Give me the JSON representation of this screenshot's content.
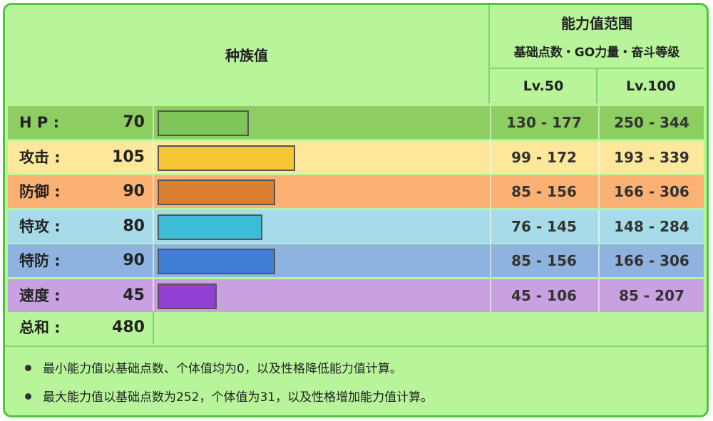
{
  "header": {
    "base_stats_title": "种族值",
    "stat_range_title": "能力值范围",
    "stat_range_subtitle": "基础点数・GO力量・奋斗等级",
    "lv50": "Lv.50",
    "lv100": "Lv.100"
  },
  "stats": [
    {
      "label": "H P :",
      "value": "70",
      "lv50": "130 - 177",
      "lv100": "250 - 344",
      "fraction": 0.2734,
      "row_color": "#8dcd62",
      "bar_color": "#80c55a"
    },
    {
      "label": "攻击 :",
      "value": "105",
      "lv50": "99 - 172",
      "lv100": "193 - 339",
      "fraction": 0.4102,
      "row_color": "#fce79a",
      "bar_color": "#f6c732"
    },
    {
      "label": "防御 :",
      "value": "90",
      "lv50": "85 - 156",
      "lv100": "166 - 306",
      "fraction": 0.3516,
      "row_color": "#fbb173",
      "bar_color": "#d97f2f"
    },
    {
      "label": "特攻 :",
      "value": "80",
      "lv50": "76 - 145",
      "lv100": "148 - 284",
      "fraction": 0.3125,
      "row_color": "#a7dbe8",
      "bar_color": "#3cbcd6"
    },
    {
      "label": "特防 :",
      "value": "90",
      "lv50": "85 - 156",
      "lv100": "166 - 306",
      "fraction": 0.3516,
      "row_color": "#8fb3e0",
      "bar_color": "#3f80d6"
    },
    {
      "label": "速度 :",
      "value": "45",
      "lv50": "45 - 106",
      "lv100": "85 - 207",
      "fraction": 0.1758,
      "row_color": "#c9a0e0",
      "bar_color": "#9140d3"
    }
  ],
  "total": {
    "label": "总和 :",
    "value": "480"
  },
  "notes": [
    "最小能力值以基础点数、个体值均为0，以及性格降低能力值计算。",
    "最大能力值以基础点数为252，个体值为31，以及性格增加能力值计算。"
  ]
}
